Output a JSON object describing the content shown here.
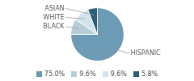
{
  "chart_data": {
    "type": "pie",
    "categories": [
      "HISPANIC",
      "BLACK",
      "WHITE",
      "ASIAN"
    ],
    "values": [
      75.0,
      9.6,
      9.6,
      5.8
    ],
    "value_labels": [
      "75.0%",
      "9.6%",
      "9.6%",
      "5.8%"
    ],
    "colors": [
      "#6d9ab5",
      "#b5cdd9",
      "#d3e4ee",
      "#2d5f7a"
    ],
    "legend": "bottom"
  }
}
